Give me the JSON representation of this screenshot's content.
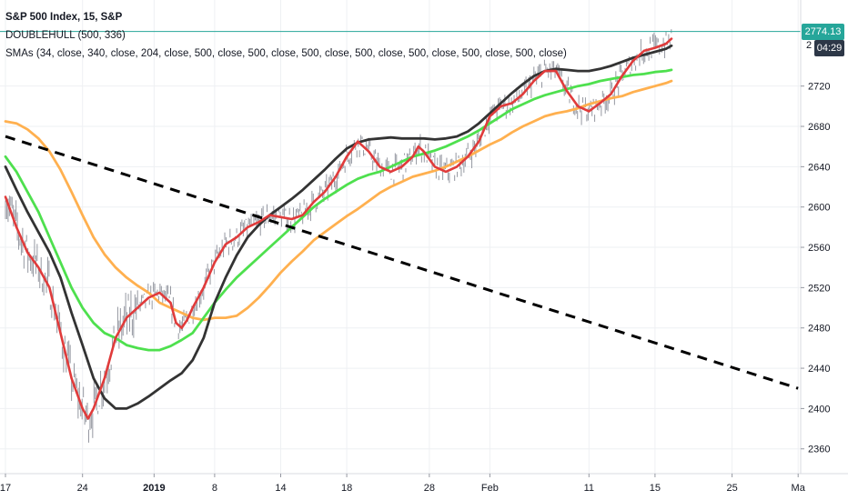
{
  "legend": {
    "title": "S&P 500 Index, 15, S&P",
    "indicator1": "DOUBLEHULL (500, 336)",
    "indicator2": "SMAs (34, close, 340, close, 204, close, 500, close, 500, close, 500, close, 500, close, 500, close, 500, close, 500, close)"
  },
  "axis": {
    "price_label": "2774.13",
    "timer_label": "04:29",
    "clipped_label": "2"
  },
  "colors": {
    "price_line": "#26a69a",
    "price_tag_bg": "#26a69a",
    "timer_tag_bg": "#2d3747",
    "candles": "#9598a1",
    "series_red": "#e03b3b",
    "series_black": "#333333",
    "series_green": "#4ee04e",
    "series_orange": "#ffb04f",
    "trendline": "#000000",
    "grid": "#eef0f3"
  },
  "chart_data": {
    "type": "line",
    "ylim": [
      2330,
      2800
    ],
    "yticks": [
      2360,
      2400,
      2440,
      2480,
      2520,
      2560,
      2600,
      2640,
      2680,
      2720
    ],
    "x_domain": [
      0,
      96
    ],
    "xticks": [
      {
        "x": 0,
        "label": "17"
      },
      {
        "x": 7,
        "label": "24"
      },
      {
        "x": 13.5,
        "label": "2019"
      },
      {
        "x": 19,
        "label": "8"
      },
      {
        "x": 25,
        "label": "14"
      },
      {
        "x": 31,
        "label": "18"
      },
      {
        "x": 38.5,
        "label": "28"
      },
      {
        "x": 44,
        "label": "Feb"
      },
      {
        "x": 53,
        "label": "11"
      },
      {
        "x": 59,
        "label": "15"
      },
      {
        "x": 66,
        "label": "25"
      },
      {
        "x": 72,
        "label": "Ma"
      }
    ],
    "bold_tick": "2019",
    "last_price": 2774.13,
    "series": [
      {
        "color": "red",
        "points": [
          [
            0,
            2610
          ],
          [
            1,
            2580
          ],
          [
            2,
            2555
          ],
          [
            3,
            2540
          ],
          [
            4,
            2520
          ],
          [
            5,
            2475
          ],
          [
            6,
            2430
          ],
          [
            7,
            2400
          ],
          [
            7.5,
            2390
          ],
          [
            8,
            2400
          ],
          [
            9,
            2430
          ],
          [
            10,
            2470
          ],
          [
            11,
            2490
          ],
          [
            12,
            2500
          ],
          [
            13,
            2510
          ],
          [
            14,
            2515
          ],
          [
            15,
            2505
          ],
          [
            15.5,
            2485
          ],
          [
            16,
            2480
          ],
          [
            16.5,
            2488
          ],
          [
            17,
            2500
          ],
          [
            18,
            2520
          ],
          [
            19,
            2545
          ],
          [
            20,
            2563
          ],
          [
            21,
            2570
          ],
          [
            22,
            2580
          ],
          [
            23,
            2585
          ],
          [
            24,
            2592
          ],
          [
            25,
            2590
          ],
          [
            26,
            2588
          ],
          [
            27,
            2592
          ],
          [
            28,
            2605
          ],
          [
            29,
            2615
          ],
          [
            30,
            2630
          ],
          [
            31,
            2650
          ],
          [
            32,
            2665
          ],
          [
            33,
            2655
          ],
          [
            34,
            2640
          ],
          [
            35,
            2635
          ],
          [
            36,
            2640
          ],
          [
            37,
            2650
          ],
          [
            37.5,
            2660
          ],
          [
            38,
            2655
          ],
          [
            39,
            2640
          ],
          [
            40,
            2635
          ],
          [
            41,
            2640
          ],
          [
            42,
            2650
          ],
          [
            43,
            2665
          ],
          [
            44,
            2690
          ],
          [
            45,
            2700
          ],
          [
            46,
            2703
          ],
          [
            47,
            2712
          ],
          [
            48,
            2725
          ],
          [
            49,
            2735
          ],
          [
            50,
            2735
          ],
          [
            51,
            2715
          ],
          [
            52,
            2700
          ],
          [
            53,
            2695
          ],
          [
            54,
            2703
          ],
          [
            55,
            2712
          ],
          [
            56,
            2730
          ],
          [
            57,
            2745
          ],
          [
            58,
            2755
          ],
          [
            59,
            2758
          ],
          [
            60,
            2762
          ],
          [
            60.5,
            2767
          ]
        ]
      },
      {
        "color": "black",
        "points": [
          [
            0,
            2640
          ],
          [
            1,
            2617
          ],
          [
            2,
            2595
          ],
          [
            3,
            2575
          ],
          [
            4,
            2555
          ],
          [
            5,
            2530
          ],
          [
            6,
            2495
          ],
          [
            7,
            2463
          ],
          [
            8,
            2430
          ],
          [
            9,
            2410
          ],
          [
            10,
            2400
          ],
          [
            11,
            2400
          ],
          [
            12,
            2405
          ],
          [
            13,
            2412
          ],
          [
            14,
            2420
          ],
          [
            15,
            2428
          ],
          [
            16,
            2435
          ],
          [
            17,
            2448
          ],
          [
            18,
            2470
          ],
          [
            19,
            2505
          ],
          [
            20,
            2530
          ],
          [
            21,
            2552
          ],
          [
            22,
            2570
          ],
          [
            23,
            2582
          ],
          [
            24,
            2592
          ],
          [
            25,
            2600
          ],
          [
            26,
            2608
          ],
          [
            27,
            2617
          ],
          [
            28,
            2627
          ],
          [
            29,
            2637
          ],
          [
            30,
            2648
          ],
          [
            31,
            2658
          ],
          [
            32,
            2664
          ],
          [
            33,
            2667
          ],
          [
            34,
            2668
          ],
          [
            35,
            2669
          ],
          [
            36,
            2668
          ],
          [
            37,
            2668
          ],
          [
            38,
            2668
          ],
          [
            39,
            2667
          ],
          [
            40,
            2668
          ],
          [
            41,
            2670
          ],
          [
            42,
            2675
          ],
          [
            43,
            2683
          ],
          [
            44,
            2693
          ],
          [
            45,
            2703
          ],
          [
            46,
            2713
          ],
          [
            47,
            2722
          ],
          [
            48,
            2730
          ],
          [
            49,
            2735
          ],
          [
            50,
            2737
          ],
          [
            51,
            2736
          ],
          [
            52,
            2735
          ],
          [
            53,
            2735
          ],
          [
            54,
            2737
          ],
          [
            55,
            2740
          ],
          [
            56,
            2744
          ],
          [
            57,
            2748
          ],
          [
            58,
            2751
          ],
          [
            59,
            2754
          ],
          [
            60,
            2757
          ],
          [
            60.5,
            2760
          ]
        ]
      },
      {
        "color": "green",
        "points": [
          [
            0,
            2650
          ],
          [
            1,
            2635
          ],
          [
            2,
            2615
          ],
          [
            3,
            2595
          ],
          [
            4,
            2570
          ],
          [
            5,
            2545
          ],
          [
            6,
            2520
          ],
          [
            7,
            2500
          ],
          [
            8,
            2485
          ],
          [
            9,
            2475
          ],
          [
            10,
            2470
          ],
          [
            11,
            2463
          ],
          [
            12,
            2460
          ],
          [
            13,
            2458
          ],
          [
            14,
            2458
          ],
          [
            15,
            2462
          ],
          [
            16,
            2468
          ],
          [
            17,
            2475
          ],
          [
            18,
            2490
          ],
          [
            19,
            2505
          ],
          [
            20,
            2518
          ],
          [
            21,
            2530
          ],
          [
            22,
            2540
          ],
          [
            23,
            2550
          ],
          [
            24,
            2560
          ],
          [
            25,
            2570
          ],
          [
            26,
            2580
          ],
          [
            27,
            2590
          ],
          [
            28,
            2600
          ],
          [
            29,
            2608
          ],
          [
            30,
            2615
          ],
          [
            31,
            2622
          ],
          [
            32,
            2628
          ],
          [
            33,
            2632
          ],
          [
            34,
            2635
          ],
          [
            35,
            2640
          ],
          [
            36,
            2645
          ],
          [
            37,
            2650
          ],
          [
            38,
            2653
          ],
          [
            39,
            2656
          ],
          [
            40,
            2660
          ],
          [
            41,
            2665
          ],
          [
            42,
            2670
          ],
          [
            43,
            2676
          ],
          [
            44,
            2683
          ],
          [
            45,
            2690
          ],
          [
            46,
            2697
          ],
          [
            47,
            2702
          ],
          [
            48,
            2707
          ],
          [
            49,
            2711
          ],
          [
            50,
            2714
          ],
          [
            51,
            2717
          ],
          [
            52,
            2720
          ],
          [
            53,
            2722
          ],
          [
            54,
            2725
          ],
          [
            55,
            2727
          ],
          [
            56,
            2729
          ],
          [
            57,
            2731
          ],
          [
            58,
            2732
          ],
          [
            59,
            2734
          ],
          [
            60,
            2735
          ],
          [
            60.5,
            2736
          ]
        ]
      },
      {
        "color": "orange",
        "points": [
          [
            0,
            2685
          ],
          [
            1,
            2683
          ],
          [
            2,
            2677
          ],
          [
            3,
            2668
          ],
          [
            4,
            2655
          ],
          [
            5,
            2637
          ],
          [
            6,
            2615
          ],
          [
            7,
            2592
          ],
          [
            8,
            2570
          ],
          [
            9,
            2553
          ],
          [
            10,
            2540
          ],
          [
            11,
            2530
          ],
          [
            12,
            2522
          ],
          [
            13,
            2515
          ],
          [
            14,
            2505
          ],
          [
            15,
            2500
          ],
          [
            16,
            2495
          ],
          [
            17,
            2490
          ],
          [
            18,
            2488
          ],
          [
            19,
            2490
          ],
          [
            20,
            2490
          ],
          [
            21,
            2492
          ],
          [
            22,
            2500
          ],
          [
            23,
            2510
          ],
          [
            24,
            2522
          ],
          [
            25,
            2535
          ],
          [
            26,
            2546
          ],
          [
            27,
            2556
          ],
          [
            28,
            2567
          ],
          [
            29,
            2575
          ],
          [
            30,
            2583
          ],
          [
            31,
            2591
          ],
          [
            32,
            2598
          ],
          [
            33,
            2606
          ],
          [
            34,
            2614
          ],
          [
            35,
            2620
          ],
          [
            36,
            2625
          ],
          [
            37,
            2630
          ],
          [
            38,
            2633
          ],
          [
            39,
            2636
          ],
          [
            40,
            2640
          ],
          [
            41,
            2645
          ],
          [
            42,
            2650
          ],
          [
            43,
            2656
          ],
          [
            44,
            2662
          ],
          [
            45,
            2667
          ],
          [
            46,
            2674
          ],
          [
            47,
            2680
          ],
          [
            48,
            2685
          ],
          [
            49,
            2690
          ],
          [
            50,
            2693
          ],
          [
            51,
            2695
          ],
          [
            52,
            2698
          ],
          [
            53,
            2702
          ],
          [
            54,
            2705
          ],
          [
            55,
            2708
          ],
          [
            56,
            2710
          ],
          [
            57,
            2714
          ],
          [
            58,
            2717
          ],
          [
            59,
            2720
          ],
          [
            60,
            2723
          ],
          [
            60.5,
            2725
          ]
        ]
      },
      {
        "color": "trendline",
        "dashed": true,
        "points": [
          [
            0,
            2670
          ],
          [
            72,
            2420
          ]
        ]
      }
    ]
  }
}
